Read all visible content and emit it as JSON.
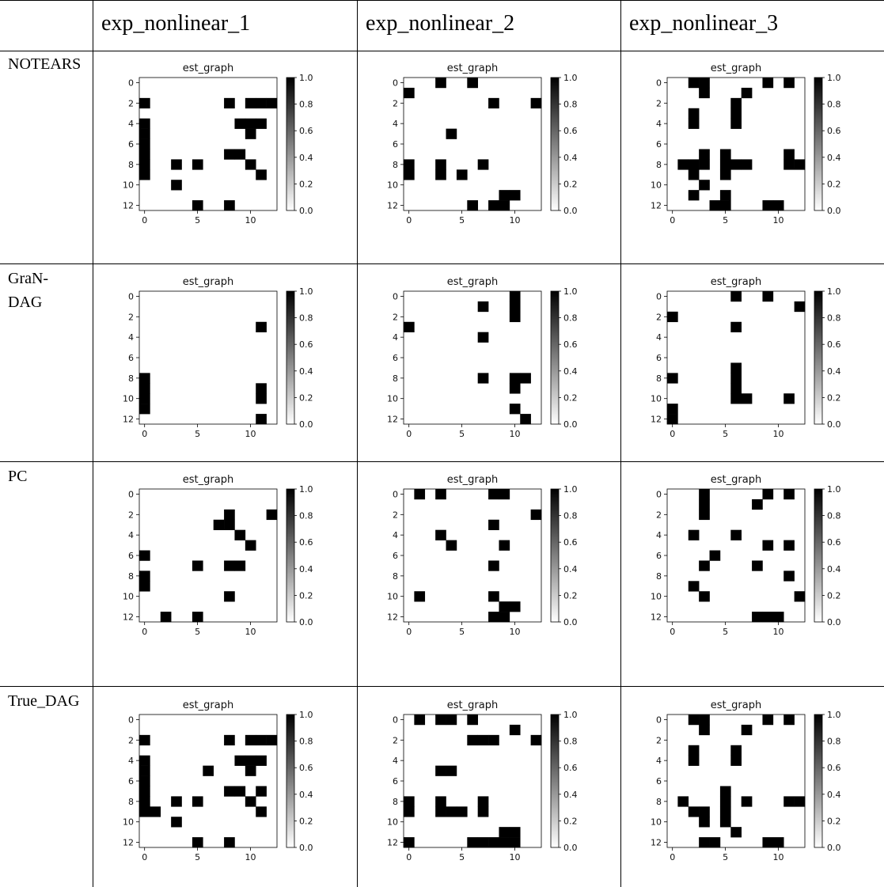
{
  "columns": [
    "exp_nonlinear_1",
    "exp_nonlinear_2",
    "exp_nonlinear_3"
  ],
  "rows": [
    "NOTEARS",
    "GraN-DAG",
    "PC",
    "True_DAG"
  ],
  "row_labels_display": [
    [
      "NOTEARS"
    ],
    [
      "GraN-",
      "DAG"
    ],
    [
      "PC"
    ],
    [
      "True_DAG"
    ]
  ],
  "chart_data": {
    "type": "heatmap",
    "panel_title": "est_graph",
    "size": 13,
    "x_ticks": [
      0,
      5,
      10
    ],
    "y_ticks": [
      0,
      2,
      4,
      6,
      8,
      10,
      12
    ],
    "colorbar": {
      "range": [
        0.0,
        1.0
      ],
      "ticks": [
        "0.0",
        "0.2",
        "0.4",
        "0.6",
        "0.8",
        "1.0"
      ],
      "cmap": "Greys"
    },
    "matrices": {
      "NOTEARS": {
        "exp_nonlinear_1": [
          [
            2,
            0
          ],
          [
            2,
            8
          ],
          [
            2,
            10
          ],
          [
            2,
            11
          ],
          [
            2,
            12
          ],
          [
            4,
            0
          ],
          [
            4,
            9
          ],
          [
            4,
            10
          ],
          [
            4,
            11
          ],
          [
            5,
            0
          ],
          [
            5,
            10
          ],
          [
            6,
            0
          ],
          [
            7,
            0
          ],
          [
            7,
            8
          ],
          [
            7,
            9
          ],
          [
            8,
            0
          ],
          [
            8,
            3
          ],
          [
            8,
            5
          ],
          [
            8,
            10
          ],
          [
            9,
            0
          ],
          [
            9,
            11
          ],
          [
            10,
            3
          ],
          [
            12,
            5
          ],
          [
            12,
            8
          ]
        ],
        "exp_nonlinear_2": [
          [
            0,
            3
          ],
          [
            0,
            6
          ],
          [
            1,
            0
          ],
          [
            2,
            8
          ],
          [
            2,
            12
          ],
          [
            5,
            4
          ],
          [
            8,
            0
          ],
          [
            8,
            3
          ],
          [
            8,
            7
          ],
          [
            9,
            0
          ],
          [
            9,
            3
          ],
          [
            9,
            5
          ],
          [
            11,
            9
          ],
          [
            11,
            10
          ],
          [
            12,
            6
          ],
          [
            12,
            8
          ],
          [
            12,
            9
          ]
        ],
        "exp_nonlinear_3": [
          [
            0,
            2
          ],
          [
            0,
            3
          ],
          [
            0,
            9
          ],
          [
            0,
            11
          ],
          [
            1,
            3
          ],
          [
            1,
            7
          ],
          [
            2,
            6
          ],
          [
            3,
            2
          ],
          [
            3,
            6
          ],
          [
            4,
            2
          ],
          [
            4,
            6
          ],
          [
            7,
            3
          ],
          [
            7,
            5
          ],
          [
            7,
            11
          ],
          [
            8,
            1
          ],
          [
            8,
            2
          ],
          [
            8,
            3
          ],
          [
            8,
            5
          ],
          [
            8,
            6
          ],
          [
            8,
            7
          ],
          [
            8,
            11
          ],
          [
            8,
            12
          ],
          [
            9,
            2
          ],
          [
            9,
            5
          ],
          [
            10,
            3
          ],
          [
            11,
            2
          ],
          [
            11,
            5
          ],
          [
            12,
            4
          ],
          [
            12,
            5
          ],
          [
            12,
            9
          ],
          [
            12,
            10
          ]
        ]
      },
      "GraN-DAG": {
        "exp_nonlinear_1": [
          [
            3,
            11
          ],
          [
            8,
            0
          ],
          [
            9,
            0
          ],
          [
            9,
            11
          ],
          [
            10,
            0
          ],
          [
            10,
            11
          ],
          [
            11,
            0
          ],
          [
            12,
            11
          ]
        ],
        "exp_nonlinear_2": [
          [
            0,
            10
          ],
          [
            1,
            7
          ],
          [
            1,
            10
          ],
          [
            2,
            10
          ],
          [
            3,
            0
          ],
          [
            4,
            7
          ],
          [
            8,
            7
          ],
          [
            8,
            10
          ],
          [
            8,
            11
          ],
          [
            9,
            10
          ],
          [
            11,
            10
          ],
          [
            12,
            11
          ]
        ],
        "exp_nonlinear_3": [
          [
            0,
            6
          ],
          [
            0,
            9
          ],
          [
            1,
            12
          ],
          [
            2,
            0
          ],
          [
            3,
            6
          ],
          [
            7,
            6
          ],
          [
            8,
            0
          ],
          [
            8,
            6
          ],
          [
            9,
            6
          ],
          [
            10,
            6
          ],
          [
            10,
            7
          ],
          [
            10,
            11
          ],
          [
            11,
            0
          ],
          [
            12,
            0
          ]
        ]
      },
      "PC": {
        "exp_nonlinear_1": [
          [
            2,
            8
          ],
          [
            2,
            12
          ],
          [
            3,
            7
          ],
          [
            3,
            8
          ],
          [
            4,
            9
          ],
          [
            5,
            10
          ],
          [
            6,
            0
          ],
          [
            7,
            5
          ],
          [
            7,
            8
          ],
          [
            7,
            9
          ],
          [
            8,
            0
          ],
          [
            9,
            0
          ],
          [
            10,
            8
          ],
          [
            12,
            2
          ],
          [
            12,
            5
          ]
        ],
        "exp_nonlinear_2": [
          [
            0,
            1
          ],
          [
            0,
            3
          ],
          [
            0,
            8
          ],
          [
            0,
            9
          ],
          [
            2,
            12
          ],
          [
            3,
            8
          ],
          [
            4,
            3
          ],
          [
            5,
            4
          ],
          [
            5,
            9
          ],
          [
            7,
            8
          ],
          [
            10,
            1
          ],
          [
            10,
            8
          ],
          [
            11,
            9
          ],
          [
            11,
            10
          ],
          [
            12,
            8
          ],
          [
            12,
            9
          ]
        ],
        "exp_nonlinear_3": [
          [
            0,
            3
          ],
          [
            0,
            9
          ],
          [
            0,
            11
          ],
          [
            1,
            3
          ],
          [
            1,
            8
          ],
          [
            2,
            3
          ],
          [
            4,
            2
          ],
          [
            4,
            6
          ],
          [
            5,
            9
          ],
          [
            5,
            11
          ],
          [
            6,
            4
          ],
          [
            7,
            3
          ],
          [
            7,
            8
          ],
          [
            8,
            11
          ],
          [
            9,
            2
          ],
          [
            10,
            3
          ],
          [
            10,
            12
          ],
          [
            12,
            8
          ],
          [
            12,
            9
          ],
          [
            12,
            10
          ]
        ]
      },
      "True_DAG": {
        "exp_nonlinear_1": [
          [
            2,
            0
          ],
          [
            2,
            8
          ],
          [
            2,
            10
          ],
          [
            2,
            11
          ],
          [
            2,
            12
          ],
          [
            4,
            0
          ],
          [
            4,
            9
          ],
          [
            4,
            10
          ],
          [
            4,
            11
          ],
          [
            5,
            0
          ],
          [
            5,
            6
          ],
          [
            5,
            10
          ],
          [
            6,
            0
          ],
          [
            7,
            0
          ],
          [
            7,
            8
          ],
          [
            7,
            9
          ],
          [
            7,
            11
          ],
          [
            8,
            0
          ],
          [
            8,
            3
          ],
          [
            8,
            5
          ],
          [
            8,
            10
          ],
          [
            9,
            0
          ],
          [
            9,
            1
          ],
          [
            9,
            11
          ],
          [
            10,
            3
          ],
          [
            12,
            5
          ],
          [
            12,
            8
          ]
        ],
        "exp_nonlinear_2": [
          [
            0,
            1
          ],
          [
            0,
            3
          ],
          [
            0,
            4
          ],
          [
            0,
            6
          ],
          [
            1,
            10
          ],
          [
            2,
            6
          ],
          [
            2,
            7
          ],
          [
            2,
            8
          ],
          [
            2,
            12
          ],
          [
            5,
            3
          ],
          [
            5,
            4
          ],
          [
            8,
            0
          ],
          [
            8,
            3
          ],
          [
            8,
            7
          ],
          [
            9,
            0
          ],
          [
            9,
            3
          ],
          [
            9,
            4
          ],
          [
            9,
            5
          ],
          [
            9,
            7
          ],
          [
            11,
            9
          ],
          [
            11,
            10
          ],
          [
            12,
            0
          ],
          [
            12,
            6
          ],
          [
            12,
            7
          ],
          [
            12,
            8
          ],
          [
            12,
            9
          ],
          [
            12,
            10
          ]
        ],
        "exp_nonlinear_3": [
          [
            0,
            2
          ],
          [
            0,
            3
          ],
          [
            0,
            9
          ],
          [
            0,
            11
          ],
          [
            1,
            3
          ],
          [
            1,
            7
          ],
          [
            3,
            2
          ],
          [
            3,
            6
          ],
          [
            4,
            2
          ],
          [
            4,
            6
          ],
          [
            7,
            5
          ],
          [
            8,
            1
          ],
          [
            8,
            5
          ],
          [
            8,
            7
          ],
          [
            8,
            11
          ],
          [
            8,
            12
          ],
          [
            9,
            2
          ],
          [
            9,
            3
          ],
          [
            9,
            5
          ],
          [
            10,
            3
          ],
          [
            10,
            5
          ],
          [
            11,
            6
          ],
          [
            12,
            3
          ],
          [
            12,
            4
          ],
          [
            12,
            9
          ],
          [
            12,
            10
          ]
        ]
      }
    }
  }
}
